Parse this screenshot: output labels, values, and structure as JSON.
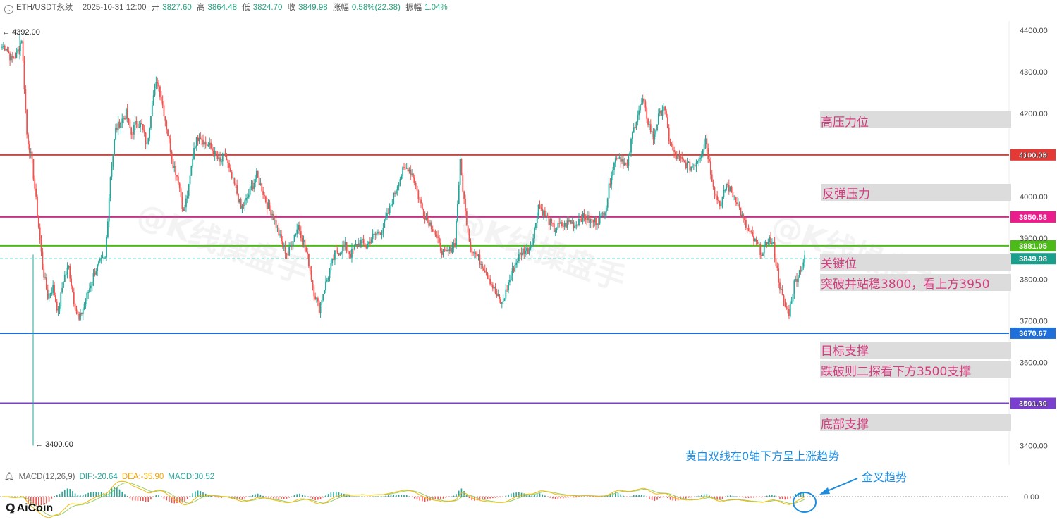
{
  "header": {
    "symbol": "ETH/USDT永续",
    "datetime": "2025-10-31 12:00",
    "open_label": "开",
    "open": "3827.60",
    "high_label": "高",
    "high": "3864.48",
    "low_label": "低",
    "low": "3824.70",
    "close_label": "收",
    "close": "3849.98",
    "change_label": "涨幅",
    "change": "0.58%(22.38)",
    "amplitude_label": "振幅",
    "amplitude": "1.04%"
  },
  "marks": {
    "high": "4392.00",
    "low": "3400.00"
  },
  "macd_header": {
    "name": "MACD(12,26,9)",
    "dif": "DIF:-20.64",
    "dea": "DEA:-35.90",
    "macd": "MACD:30.52"
  },
  "annotations": {
    "high_pressure": "高压力位",
    "rebound_pressure": "反弹压力",
    "key_level": "关键位",
    "key_level_note": "突破并站稳3800，看上方3950",
    "target_support": "目标支撑",
    "target_support_note": "跌破则二探看下方3500支撑",
    "bottom_support": "底部支撑",
    "macd_note": "黄白双线在0轴下方呈上涨趋势",
    "golden_cross": "金叉趋势"
  },
  "logo": {
    "text": "AiCoin",
    "icon": "aicoin-logo-icon"
  },
  "watermark": "@K线操盘手",
  "colors": {
    "up": "#26a69a",
    "down": "#ef5350",
    "line_4100": "#e53935",
    "line_3950": "#e91e8c",
    "line_3881": "#4cbb17",
    "line_3670": "#1e6fd9",
    "line_3501": "#7b3fd0",
    "current": "#1a9f8c",
    "dif": "#f0b90b",
    "dea": "#9ccc65",
    "annotation": "#d63b7f",
    "callout": "#1c8ce0"
  },
  "chart_data": {
    "type": "candlestick",
    "symbol": "ETH/USDT永续",
    "ylim": [
      3380,
      4420
    ],
    "y_ticks": [
      "4400.00",
      "4300.00",
      "4200.00",
      "4100.00",
      "4000.00",
      "3900.00",
      "3800.00",
      "3700.00",
      "3600.00",
      "3500.00",
      "3400.00"
    ],
    "levels": [
      {
        "label": "4100.05",
        "value": 4100.05
      },
      {
        "label": "3950.58",
        "value": 3950.58
      },
      {
        "label": "3881.05",
        "value": 3881.05
      },
      {
        "label": "3849.98",
        "value": 3849.98
      },
      {
        "label": "3670.67",
        "value": 3670.67
      },
      {
        "label": "3501.80",
        "value": 3501.8
      }
    ],
    "series": [
      {
        "name": "Close",
        "values": [
          4360,
          4330,
          4340,
          4380,
          4150,
          4080,
          3960,
          3830,
          3760,
          3780,
          3720,
          3800,
          3830,
          3750,
          3700,
          3740,
          3780,
          3820,
          3840,
          3850,
          4050,
          4160,
          4180,
          4200,
          4150,
          4180,
          4170,
          4120,
          4230,
          4280,
          4220,
          4150,
          4080,
          4040,
          3960,
          4020,
          4120,
          4150,
          4130,
          4120,
          4100,
          4080,
          4100,
          4050,
          4020,
          3970,
          3990,
          4020,
          4050,
          4020,
          3980,
          3960,
          3920,
          3880,
          3860,
          3900,
          3930,
          3890,
          3840,
          3770,
          3730,
          3780,
          3820,
          3860,
          3870,
          3880,
          3860,
          3880,
          3890,
          3880,
          3900,
          3910,
          3920,
          3950,
          3990,
          4030,
          4060,
          4070,
          4050,
          4000,
          3960,
          3940,
          3920,
          3880,
          3860,
          3870,
          3890,
          4080,
          3960,
          3880,
          3860,
          3840,
          3820,
          3790,
          3760,
          3740,
          3780,
          3820,
          3850,
          3870,
          3870,
          3900,
          3980,
          3960,
          3940,
          3920,
          3930,
          3930,
          3940,
          3930,
          3950,
          3950,
          3940,
          3940,
          3950,
          3980,
          4060,
          4100,
          4090,
          4070,
          4150,
          4200,
          4230,
          4180,
          4140,
          4190,
          4220,
          4140,
          4100,
          4090,
          4080,
          4070,
          4080,
          4100,
          4140,
          4060,
          4000,
          3980,
          4030,
          4010,
          3990,
          3950,
          3920,
          3900,
          3880,
          3860,
          3900,
          3880,
          3800,
          3740,
          3720,
          3790,
          3820,
          3850
        ]
      }
    ],
    "macd": {
      "dif_last": -20.64,
      "dea_last": -35.9,
      "hist_last": 30.52,
      "zero_label": "0.00"
    }
  }
}
